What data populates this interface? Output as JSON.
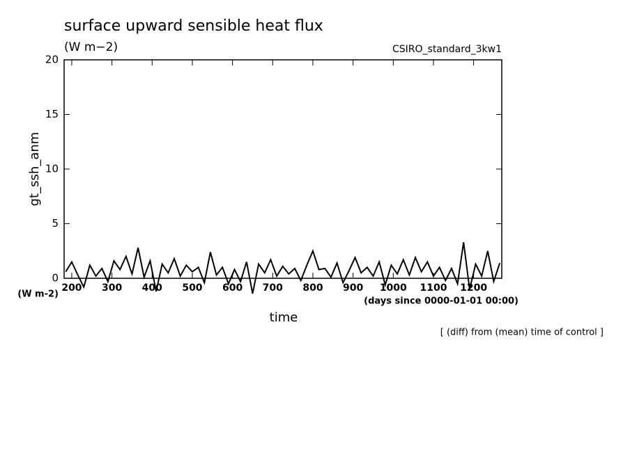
{
  "chart_data": {
    "type": "line",
    "title": "surface upward sensible heat flux",
    "subtitle": "(W m−2)",
    "annotation": "CSIRO_standard_3kw1",
    "y_label": "gt_ssh_anm",
    "y_units": "(W m-2)",
    "x_label": "time",
    "x_units": "(days since 0000-01-01 00:00)",
    "footnote": "[ (diff) from (mean) time of control ]",
    "xlim": [
      181,
      1270
    ],
    "ylim": [
      0,
      20
    ],
    "xticks": [
      200,
      300,
      400,
      500,
      600,
      700,
      800,
      900,
      1000,
      1100,
      1200
    ],
    "yticks": [
      0,
      5,
      10,
      15,
      20
    ],
    "x": [
      185,
      200,
      215,
      230,
      245,
      260,
      275,
      290,
      305,
      320,
      335,
      350,
      365,
      380,
      395,
      410,
      425,
      440,
      455,
      470,
      485,
      500,
      515,
      530,
      545,
      560,
      575,
      590,
      605,
      620,
      635,
      650,
      665,
      680,
      695,
      710,
      725,
      740,
      755,
      770,
      785,
      800,
      815,
      830,
      845,
      860,
      875,
      890,
      905,
      920,
      935,
      950,
      965,
      980,
      995,
      1010,
      1025,
      1040,
      1055,
      1070,
      1085,
      1100,
      1115,
      1130,
      1145,
      1160,
      1175,
      1190,
      1205,
      1220,
      1235,
      1250,
      1265
    ],
    "series": [
      {
        "color": "#000000",
        "values": [
          0.6,
          1.5,
          0.3,
          -0.8,
          1.2,
          0.2,
          0.9,
          -0.3,
          1.6,
          0.8,
          2.0,
          0.4,
          2.8,
          0.1,
          1.6,
          -1.2,
          1.3,
          0.5,
          1.8,
          0.2,
          1.2,
          0.6,
          1.0,
          -0.4,
          2.4,
          0.3,
          1.0,
          -0.5,
          0.8,
          -0.3,
          1.5,
          -1.4,
          1.3,
          0.5,
          1.7,
          0.2,
          1.1,
          0.4,
          0.9,
          -0.2,
          1.2,
          2.5,
          0.8,
          0.9,
          0.1,
          1.4,
          -0.4,
          0.7,
          1.9,
          0.5,
          1.0,
          0.2,
          1.5,
          -0.6,
          1.2,
          0.4,
          1.7,
          0.3,
          1.9,
          0.6,
          1.5,
          0.2,
          1.0,
          -0.2,
          0.9,
          -0.5,
          3.3,
          -1.0,
          1.3,
          0.2,
          2.5,
          -0.3,
          1.4
        ]
      }
    ]
  }
}
